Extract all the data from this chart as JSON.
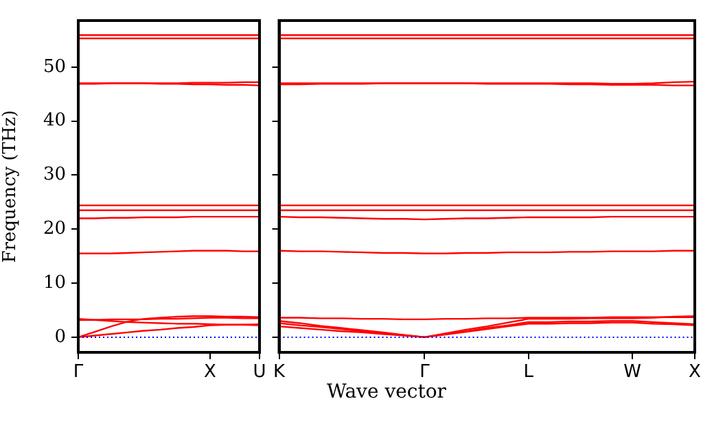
{
  "chart_data": [
    {
      "type": "line",
      "ylabel": "Frequency (THz)",
      "categories": [
        "Γ",
        null,
        null,
        null,
        null,
        null,
        null,
        null,
        "X",
        null,
        null,
        "U"
      ],
      "ylim": [
        -2.8,
        58.6
      ],
      "yticks": [
        0,
        10,
        20,
        30,
        40,
        50
      ],
      "grid": false,
      "legend": false,
      "marker": "none",
      "line_style": "solid",
      "ref_lines": [
        {
          "axis": "y",
          "value": 0,
          "color": "#0000ff",
          "line_style": "dotted"
        }
      ],
      "series": [
        {
          "color": "#ff0000",
          "values": [
            0,
            0.3,
            0.6,
            0.9,
            1.2,
            1.4,
            1.7,
            1.9,
            2.2,
            2.3,
            2.3,
            2.4
          ]
        },
        {
          "color": "#ff0000",
          "values": [
            0,
            1.0,
            2.0,
            2.9,
            3.4,
            3.6,
            3.8,
            3.9,
            3.9,
            3.8,
            3.8,
            3.7
          ]
        },
        {
          "color": "#ff0000",
          "values": [
            3.2,
            3.2,
            3.3,
            3.3,
            3.3,
            3.4,
            3.4,
            3.5,
            3.6,
            3.6,
            3.5,
            3.5
          ]
        },
        {
          "color": "#ff0000",
          "values": [
            3.4,
            3.2,
            3.0,
            2.8,
            2.7,
            2.6,
            2.5,
            2.5,
            2.4,
            2.3,
            2.3,
            2.2
          ]
        },
        {
          "color": "#ff0000",
          "values": [
            15.5,
            15.5,
            15.5,
            15.6,
            15.7,
            15.8,
            15.9,
            16.0,
            16.0,
            16.0,
            15.9,
            15.9
          ]
        },
        {
          "color": "#ff0000",
          "values": [
            22.0,
            22.0,
            22.1,
            22.1,
            22.2,
            22.2,
            22.2,
            22.3,
            22.3,
            22.3,
            22.3,
            22.3
          ]
        },
        {
          "color": "#ff0000",
          "values": [
            23.5,
            23.5,
            23.5,
            23.5,
            23.5,
            23.5,
            23.5,
            23.5,
            23.5,
            23.5,
            23.5,
            23.5
          ]
        },
        {
          "color": "#ff0000",
          "values": [
            24.4,
            24.4,
            24.4,
            24.4,
            24.4,
            24.4,
            24.4,
            24.4,
            24.4,
            24.4,
            24.4,
            24.4
          ]
        },
        {
          "color": "#ff0000",
          "values": [
            47.0,
            47.0,
            47.0,
            47.0,
            47.0,
            46.9,
            46.9,
            46.8,
            46.8,
            46.7,
            46.7,
            46.6
          ]
        },
        {
          "color": "#ff0000",
          "values": [
            46.9,
            46.9,
            47.0,
            47.0,
            47.0,
            47.0,
            47.0,
            47.1,
            47.1,
            47.1,
            47.2,
            47.2
          ]
        },
        {
          "color": "#ff0000",
          "values": [
            55.3,
            55.3,
            55.3,
            55.3,
            55.3,
            55.3,
            55.3,
            55.3,
            55.3,
            55.3,
            55.3,
            55.3
          ]
        },
        {
          "color": "#ff0000",
          "values": [
            55.9,
            55.9,
            55.9,
            55.9,
            55.9,
            55.9,
            55.9,
            55.9,
            55.9,
            55.9,
            55.9,
            55.9
          ]
        }
      ]
    },
    {
      "type": "line",
      "xlabel": "Wave vector",
      "categories": [
        "K",
        null,
        null,
        null,
        null,
        null,
        null,
        "Γ",
        null,
        null,
        null,
        null,
        "L",
        null,
        null,
        null,
        null,
        "W",
        null,
        null,
        "X"
      ],
      "ylim": [
        -2.8,
        58.6
      ],
      "yticks": [
        0,
        10,
        20,
        30,
        40,
        50
      ],
      "tick_labels": "x",
      "grid": false,
      "legend": false,
      "marker": "none",
      "line_style": "solid",
      "ref_lines": [
        {
          "axis": "y",
          "value": 0,
          "color": "#0000ff",
          "line_style": "dotted"
        }
      ],
      "series": [
        {
          "color": "#ff0000",
          "values": [
            2.0,
            1.7,
            1.4,
            1.1,
            0.9,
            0.6,
            0.3,
            0,
            0.5,
            1.0,
            1.5,
            2.0,
            2.5,
            2.5,
            2.6,
            2.6,
            2.7,
            2.7,
            2.5,
            2.4,
            2.2
          ]
        },
        {
          "color": "#ff0000",
          "values": [
            2.6,
            2.2,
            1.9,
            1.5,
            1.1,
            0.7,
            0.4,
            0,
            0.6,
            1.1,
            1.7,
            2.2,
            2.8,
            2.8,
            2.9,
            2.9,
            3.0,
            3.0,
            2.8,
            2.6,
            2.4
          ]
        },
        {
          "color": "#ff0000",
          "values": [
            3.0,
            2.6,
            2.1,
            1.7,
            1.3,
            0.9,
            0.4,
            0,
            0.7,
            1.4,
            2.0,
            2.7,
            3.4,
            3.4,
            3.4,
            3.5,
            3.5,
            3.5,
            3.6,
            3.8,
            3.9
          ]
        },
        {
          "color": "#ff0000",
          "values": [
            3.6,
            3.6,
            3.5,
            3.5,
            3.4,
            3.4,
            3.3,
            3.3,
            3.4,
            3.4,
            3.5,
            3.5,
            3.6,
            3.6,
            3.6,
            3.6,
            3.7,
            3.7,
            3.7,
            3.7,
            3.7
          ]
        },
        {
          "color": "#ff0000",
          "values": [
            16.0,
            15.9,
            15.9,
            15.8,
            15.7,
            15.6,
            15.6,
            15.5,
            15.5,
            15.6,
            15.6,
            15.7,
            15.7,
            15.7,
            15.8,
            15.8,
            15.9,
            15.9,
            15.9,
            16.0,
            16.0
          ]
        },
        {
          "color": "#ff0000",
          "values": [
            22.3,
            22.2,
            22.2,
            22.1,
            22.0,
            21.9,
            21.9,
            21.8,
            21.9,
            22.0,
            22.0,
            22.1,
            22.2,
            22.2,
            22.2,
            22.2,
            22.3,
            22.3,
            22.3,
            22.3,
            22.3
          ]
        },
        {
          "color": "#ff0000",
          "values": [
            23.5,
            23.5,
            23.5,
            23.5,
            23.5,
            23.5,
            23.5,
            23.5,
            23.5,
            23.5,
            23.5,
            23.5,
            23.5,
            23.5,
            23.5,
            23.5,
            23.5,
            23.5,
            23.5,
            23.5,
            23.5
          ]
        },
        {
          "color": "#ff0000",
          "values": [
            24.4,
            24.4,
            24.4,
            24.4,
            24.4,
            24.4,
            24.4,
            24.4,
            24.4,
            24.4,
            24.4,
            24.4,
            24.4,
            24.4,
            24.4,
            24.4,
            24.4,
            24.4,
            24.4,
            24.4,
            24.4
          ]
        },
        {
          "color": "#ff0000",
          "values": [
            46.8,
            46.8,
            46.9,
            46.9,
            46.9,
            47.0,
            47.0,
            47.0,
            47.0,
            47.0,
            46.9,
            46.9,
            46.9,
            46.9,
            46.8,
            46.8,
            46.7,
            46.7,
            46.7,
            46.6,
            46.6
          ]
        },
        {
          "color": "#ff0000",
          "values": [
            47.0,
            47.0,
            47.0,
            47.0,
            47.0,
            47.0,
            47.0,
            47.0,
            47.0,
            47.0,
            47.0,
            47.0,
            47.0,
            47.0,
            47.0,
            47.0,
            46.9,
            46.9,
            47.0,
            47.2,
            47.3
          ]
        },
        {
          "color": "#ff0000",
          "values": [
            55.3,
            55.3,
            55.3,
            55.3,
            55.3,
            55.3,
            55.3,
            55.3,
            55.3,
            55.3,
            55.3,
            55.3,
            55.3,
            55.3,
            55.3,
            55.3,
            55.3,
            55.3,
            55.3,
            55.3,
            55.3
          ]
        },
        {
          "color": "#ff0000",
          "values": [
            55.9,
            55.9,
            55.9,
            55.9,
            55.9,
            55.9,
            55.9,
            55.9,
            55.9,
            55.9,
            55.9,
            55.9,
            55.9,
            55.9,
            55.9,
            55.9,
            55.9,
            55.9,
            55.9,
            55.9,
            55.9
          ]
        }
      ]
    }
  ]
}
